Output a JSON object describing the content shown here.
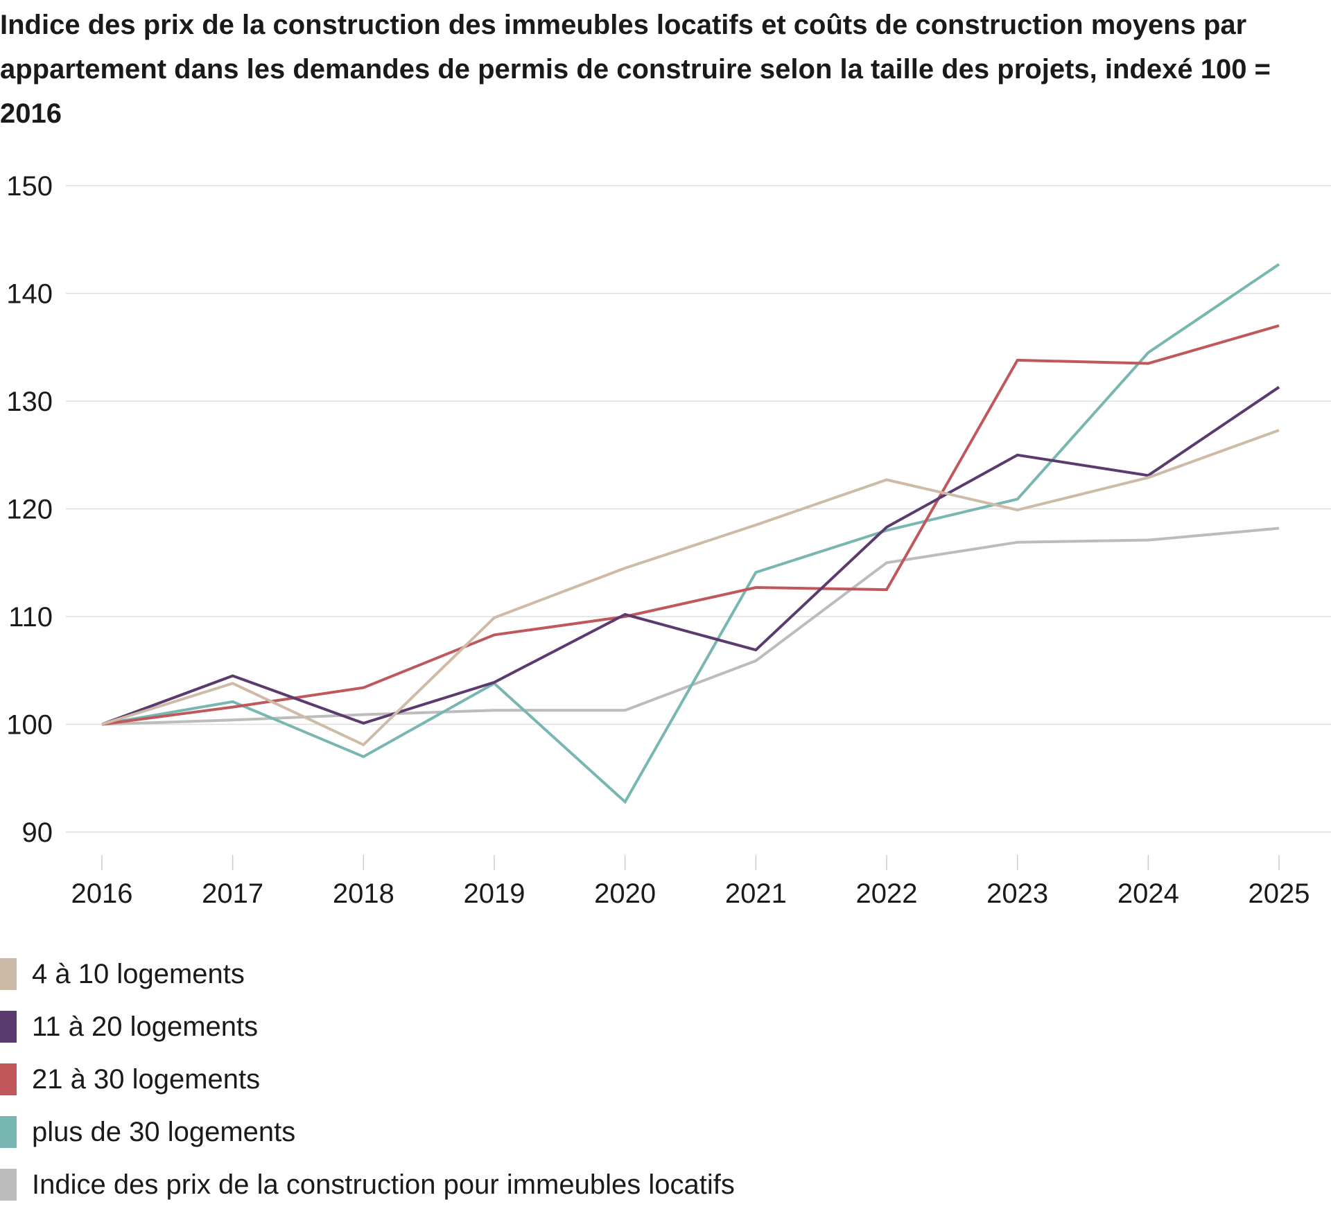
{
  "chart_data": {
    "type": "line",
    "title": "Indice des prix de la construction des immeubles locatifs et coûts de construction moyens par appartement dans les demandes de permis de construire selon la taille des projets, indexé 100 = 2016",
    "xlabel": "",
    "ylabel": "",
    "categories": [
      "2016",
      "2017",
      "2018",
      "2019",
      "2020",
      "2021",
      "2022",
      "2023",
      "2024",
      "2025"
    ],
    "ylim": [
      90,
      150
    ],
    "yticks": [
      90,
      100,
      110,
      120,
      130,
      140,
      150
    ],
    "grid": true,
    "legend_position": "bottom-left",
    "series": [
      {
        "name": "4 à 10 logements",
        "color": "#cdbba7",
        "values": [
          100,
          103.8,
          98.1,
          109.9,
          114.5,
          118.5,
          122.7,
          119.9,
          122.9,
          127.3
        ]
      },
      {
        "name": "11 à 20 logements",
        "color": "#5b3a6e",
        "values": [
          100,
          104.5,
          100.1,
          103.9,
          110.2,
          106.9,
          118.3,
          125.0,
          123.1,
          131.3
        ]
      },
      {
        "name": "21 à 30 logements",
        "color": "#c0585b",
        "values": [
          100,
          101.6,
          103.4,
          108.3,
          110.0,
          112.7,
          112.5,
          133.8,
          133.5,
          137.0
        ]
      },
      {
        "name": "plus de 30 logements",
        "color": "#78b6b1",
        "values": [
          100,
          102.1,
          97.0,
          103.8,
          92.8,
          114.1,
          118.0,
          120.9,
          134.5,
          142.7
        ]
      },
      {
        "name": "Indice des prix de la construction pour immeubles locatifs",
        "color": "#bcbcbc",
        "values": [
          100,
          100.4,
          100.9,
          101.3,
          101.3,
          105.9,
          115.0,
          116.9,
          117.1,
          118.2
        ]
      }
    ]
  }
}
